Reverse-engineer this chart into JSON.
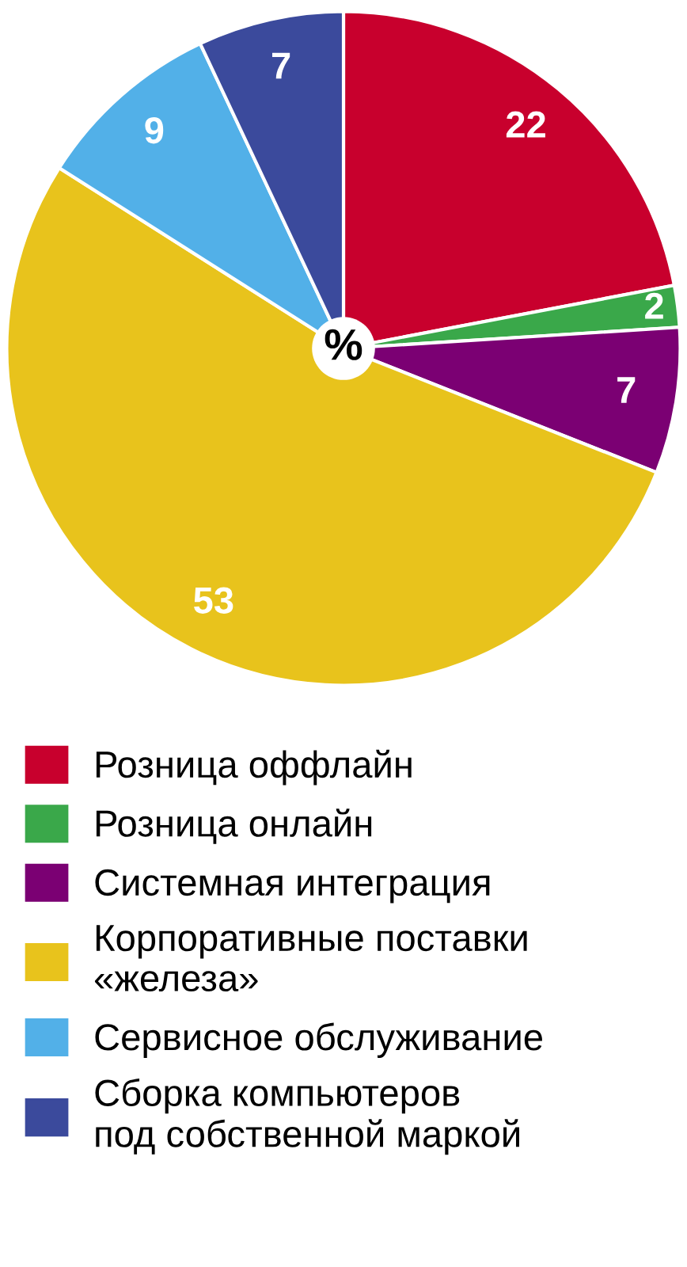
{
  "chart_data": {
    "type": "pie",
    "categories": [
      "Розница оффлайн",
      "Розница онлайн",
      "Системная интеграция",
      "Корпоративные поставки\n«железа»",
      "Сервисное обслуживание",
      "Сборка компьютеров\nпод собственной маркой"
    ],
    "values": [
      22,
      2,
      7,
      53,
      9,
      7
    ],
    "colors": [
      "#c8002d",
      "#3aa84a",
      "#7b0073",
      "#e8c31c",
      "#52b0e8",
      "#3b4a9c"
    ],
    "data_labels": true,
    "annotations": [
      "%"
    ],
    "legend": "bottom"
  }
}
